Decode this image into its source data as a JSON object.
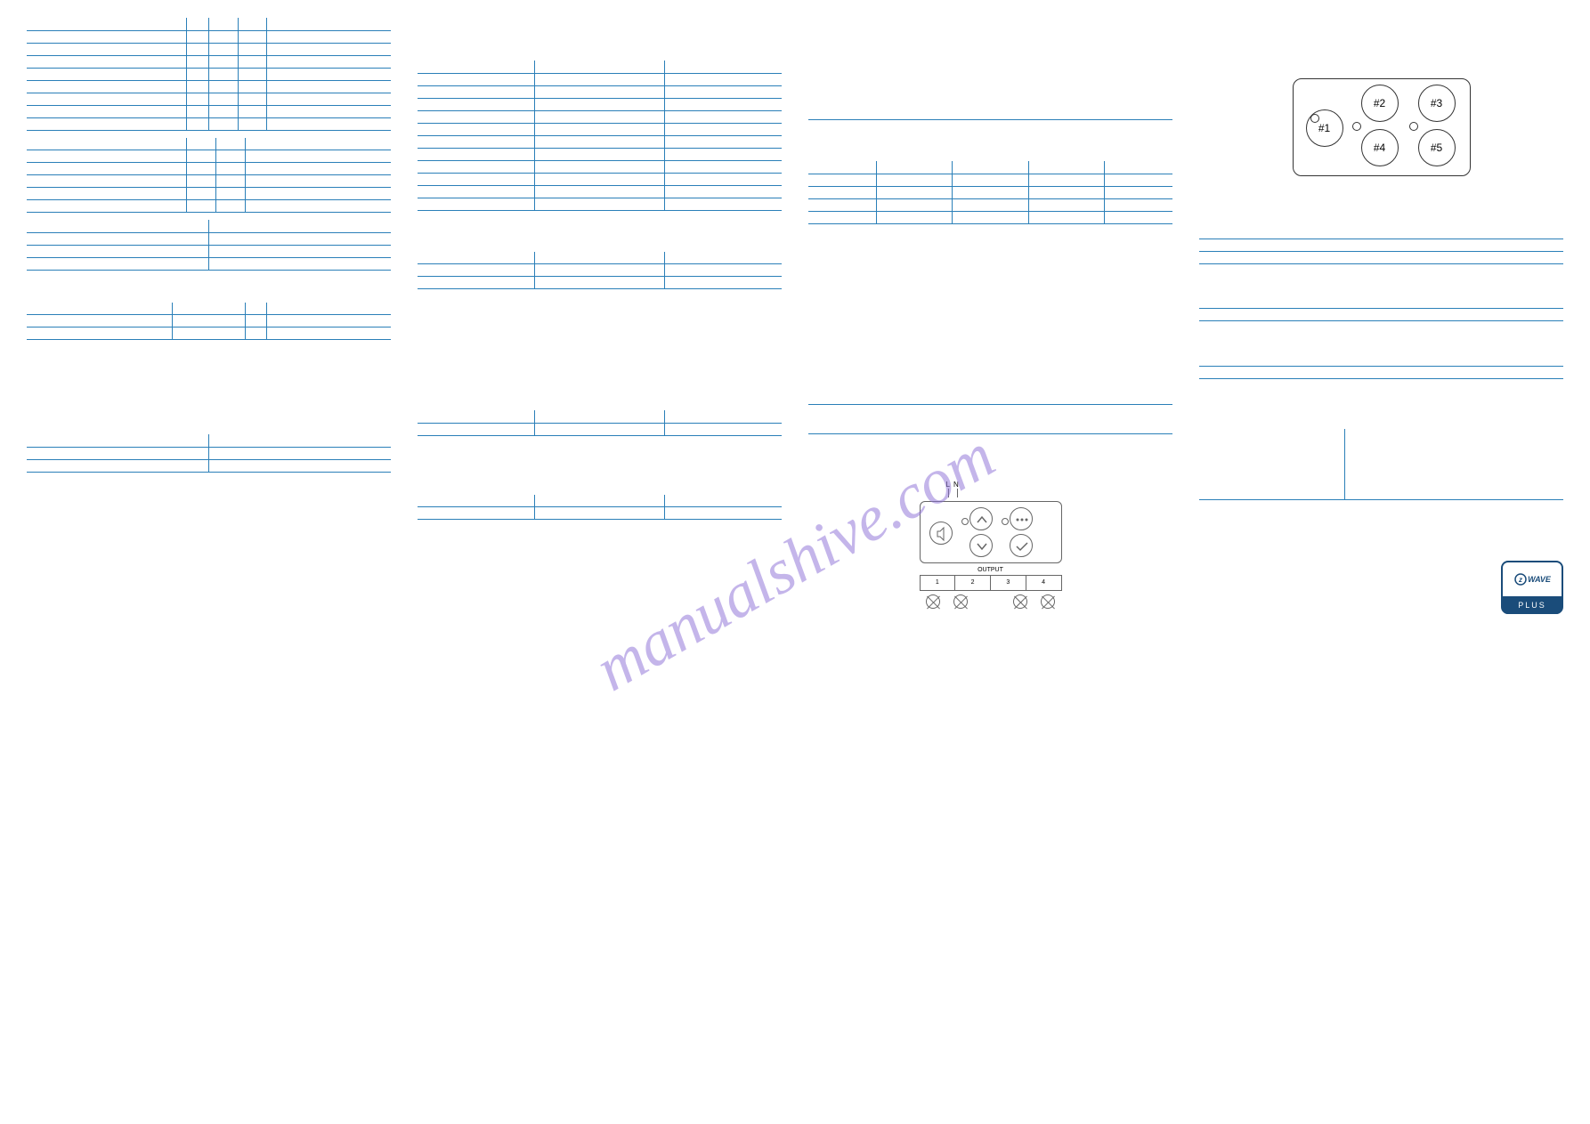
{
  "watermark": "manualshive.com",
  "zwave": {
    "top": "WAVE",
    "bottom": "PLUS"
  },
  "col1": {
    "table_a": {
      "rows": [
        [
          " ",
          " ",
          " ",
          " ",
          " "
        ],
        [
          " ",
          " ",
          " ",
          " ",
          " "
        ],
        [
          " ",
          " ",
          " ",
          " ",
          " "
        ],
        [
          " ",
          " ",
          " ",
          " ",
          " "
        ],
        [
          " ",
          " ",
          " ",
          " ",
          " "
        ],
        [
          " ",
          " ",
          " ",
          " ",
          " "
        ],
        [
          " ",
          " ",
          " ",
          " ",
          " "
        ],
        [
          " ",
          " ",
          " ",
          " ",
          " "
        ],
        [
          " ",
          " ",
          " ",
          " ",
          " "
        ]
      ],
      "widths": [
        "44%",
        "6%",
        "8%",
        "8%",
        "34%"
      ]
    },
    "table_b": {
      "rows": [
        [
          " ",
          " ",
          " ",
          " "
        ],
        [
          " ",
          " ",
          " ",
          " "
        ],
        [
          " ",
          " ",
          " ",
          " "
        ],
        [
          " ",
          " ",
          " ",
          " "
        ],
        [
          " ",
          " ",
          " ",
          " "
        ],
        [
          " ",
          " ",
          " ",
          " "
        ]
      ],
      "widths": [
        "44%",
        "8%",
        "8%",
        "40%"
      ]
    },
    "table_c": {
      "rows": [
        [
          " ",
          " "
        ],
        [
          " ",
          " "
        ],
        [
          " ",
          " "
        ],
        [
          " ",
          " "
        ]
      ]
    },
    "table_d": {
      "rows": [
        [
          " ",
          " ",
          " ",
          " "
        ],
        [
          " ",
          " ",
          " ",
          " "
        ],
        [
          " ",
          " ",
          " ",
          " "
        ]
      ],
      "widths": [
        "40%",
        "20%",
        "6%",
        "34%"
      ]
    },
    "bottom_note": " ",
    "table_e": {
      "rows": [
        [
          " ",
          " "
        ],
        [
          " ",
          " "
        ],
        [
          " ",
          " "
        ]
      ]
    }
  },
  "col2": {
    "table_a": {
      "rows": [
        [
          " ",
          " ",
          " "
        ],
        [
          " ",
          " ",
          " "
        ],
        [
          " ",
          " ",
          " "
        ],
        [
          " ",
          " ",
          " "
        ],
        [
          " ",
          " ",
          " "
        ],
        [
          " ",
          " ",
          " "
        ],
        [
          " ",
          " ",
          " "
        ],
        [
          " ",
          " ",
          " "
        ],
        [
          " ",
          " ",
          " "
        ],
        [
          " ",
          " ",
          " "
        ],
        [
          " ",
          " ",
          " "
        ],
        [
          " ",
          " ",
          " "
        ]
      ]
    },
    "table_b": {
      "rows": [
        [
          " ",
          " ",
          " "
        ],
        [
          " ",
          " ",
          " "
        ],
        [
          " ",
          " ",
          " "
        ]
      ]
    },
    "table_c": {
      "rows": [
        [
          " ",
          " ",
          " "
        ],
        [
          " ",
          " ",
          " "
        ]
      ]
    },
    "table_d": {
      "rows": [
        [
          " ",
          " ",
          " "
        ],
        [
          " ",
          " ",
          " "
        ]
      ]
    }
  },
  "col3": {
    "table_a": {
      "rows": [
        [
          " ",
          " ",
          " ",
          " ",
          " "
        ],
        [
          " ",
          " ",
          " ",
          " ",
          " "
        ],
        [
          " ",
          " ",
          " ",
          " ",
          " "
        ],
        [
          " ",
          " ",
          " ",
          " ",
          " "
        ],
        [
          " ",
          " ",
          " ",
          " ",
          " "
        ]
      ]
    },
    "hr_rows": [
      [
        " "
      ],
      [
        " "
      ]
    ],
    "diagram_labels": {
      "L": "L",
      "N": "N",
      "output": "OUTPUT",
      "ports": [
        "1",
        "2",
        "3",
        "4"
      ]
    }
  },
  "col4": {
    "buttons": {
      "b1": "#1",
      "b2": "#2",
      "b3": "#3",
      "b4": "#4",
      "b5": "#5"
    },
    "rows_a": [
      [
        " ",
        " "
      ],
      [
        " ",
        " "
      ],
      [
        " ",
        " "
      ]
    ],
    "rows_b": [
      [
        " ",
        " "
      ],
      [
        " ",
        " "
      ]
    ],
    "rows_c": [
      [
        " ",
        " "
      ],
      [
        " ",
        " "
      ]
    ],
    "big_split": [
      [
        " ",
        " "
      ],
      [
        " ",
        " "
      ]
    ],
    "heading": " "
  },
  "colors": {
    "line": "#2a7fb8",
    "text": "#333",
    "watermark": "#8a6ed6",
    "logo": "#1a4c7a"
  }
}
